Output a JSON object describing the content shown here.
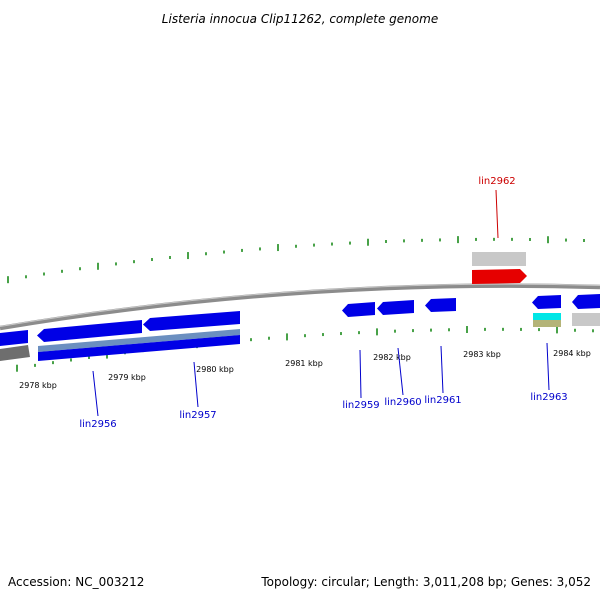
{
  "title": "Listeria innocua Clip11262, complete genome",
  "footer": {
    "accession": "Accession: NC_003212",
    "summary": "Topology: circular; Length: 3,011,208 bp; Genes: 3,052"
  },
  "colors": {
    "backbone": "#8c8c8c",
    "forward_gene": "#0000e6",
    "reverse_gene": "#0000e6",
    "highlight_gene": "#e60000",
    "feature_grey": "#c8c8c8",
    "feature_cyan": "#00e6e6",
    "feature_olive": "#b4b478",
    "feature_steel": "#5a7fb4",
    "gc_tick": "#1a8a1a",
    "label_blue": "#0000cc",
    "label_red": "#cc0000"
  },
  "scale": {
    "ticks": [
      {
        "kbp": 2978,
        "label": "2978 kbp"
      },
      {
        "kbp": 2979,
        "label": "2979 kbp"
      },
      {
        "kbp": 2980,
        "label": "2980 kbp"
      },
      {
        "kbp": 2981,
        "label": "2981 kbp"
      },
      {
        "kbp": 2982,
        "label": "2982 kbp"
      },
      {
        "kbp": 2983,
        "label": "2983 kbp"
      },
      {
        "kbp": 2984,
        "label": "2984 kbp"
      }
    ]
  },
  "gene_labels": [
    {
      "name": "lin2956",
      "color": "label_blue"
    },
    {
      "name": "lin2957",
      "color": "label_blue"
    },
    {
      "name": "lin2959",
      "color": "label_blue"
    },
    {
      "name": "lin2960",
      "color": "label_blue"
    },
    {
      "name": "lin2961",
      "color": "label_blue"
    },
    {
      "name": "lin2962",
      "color": "label_red"
    },
    {
      "name": "lin2963",
      "color": "label_blue"
    }
  ]
}
